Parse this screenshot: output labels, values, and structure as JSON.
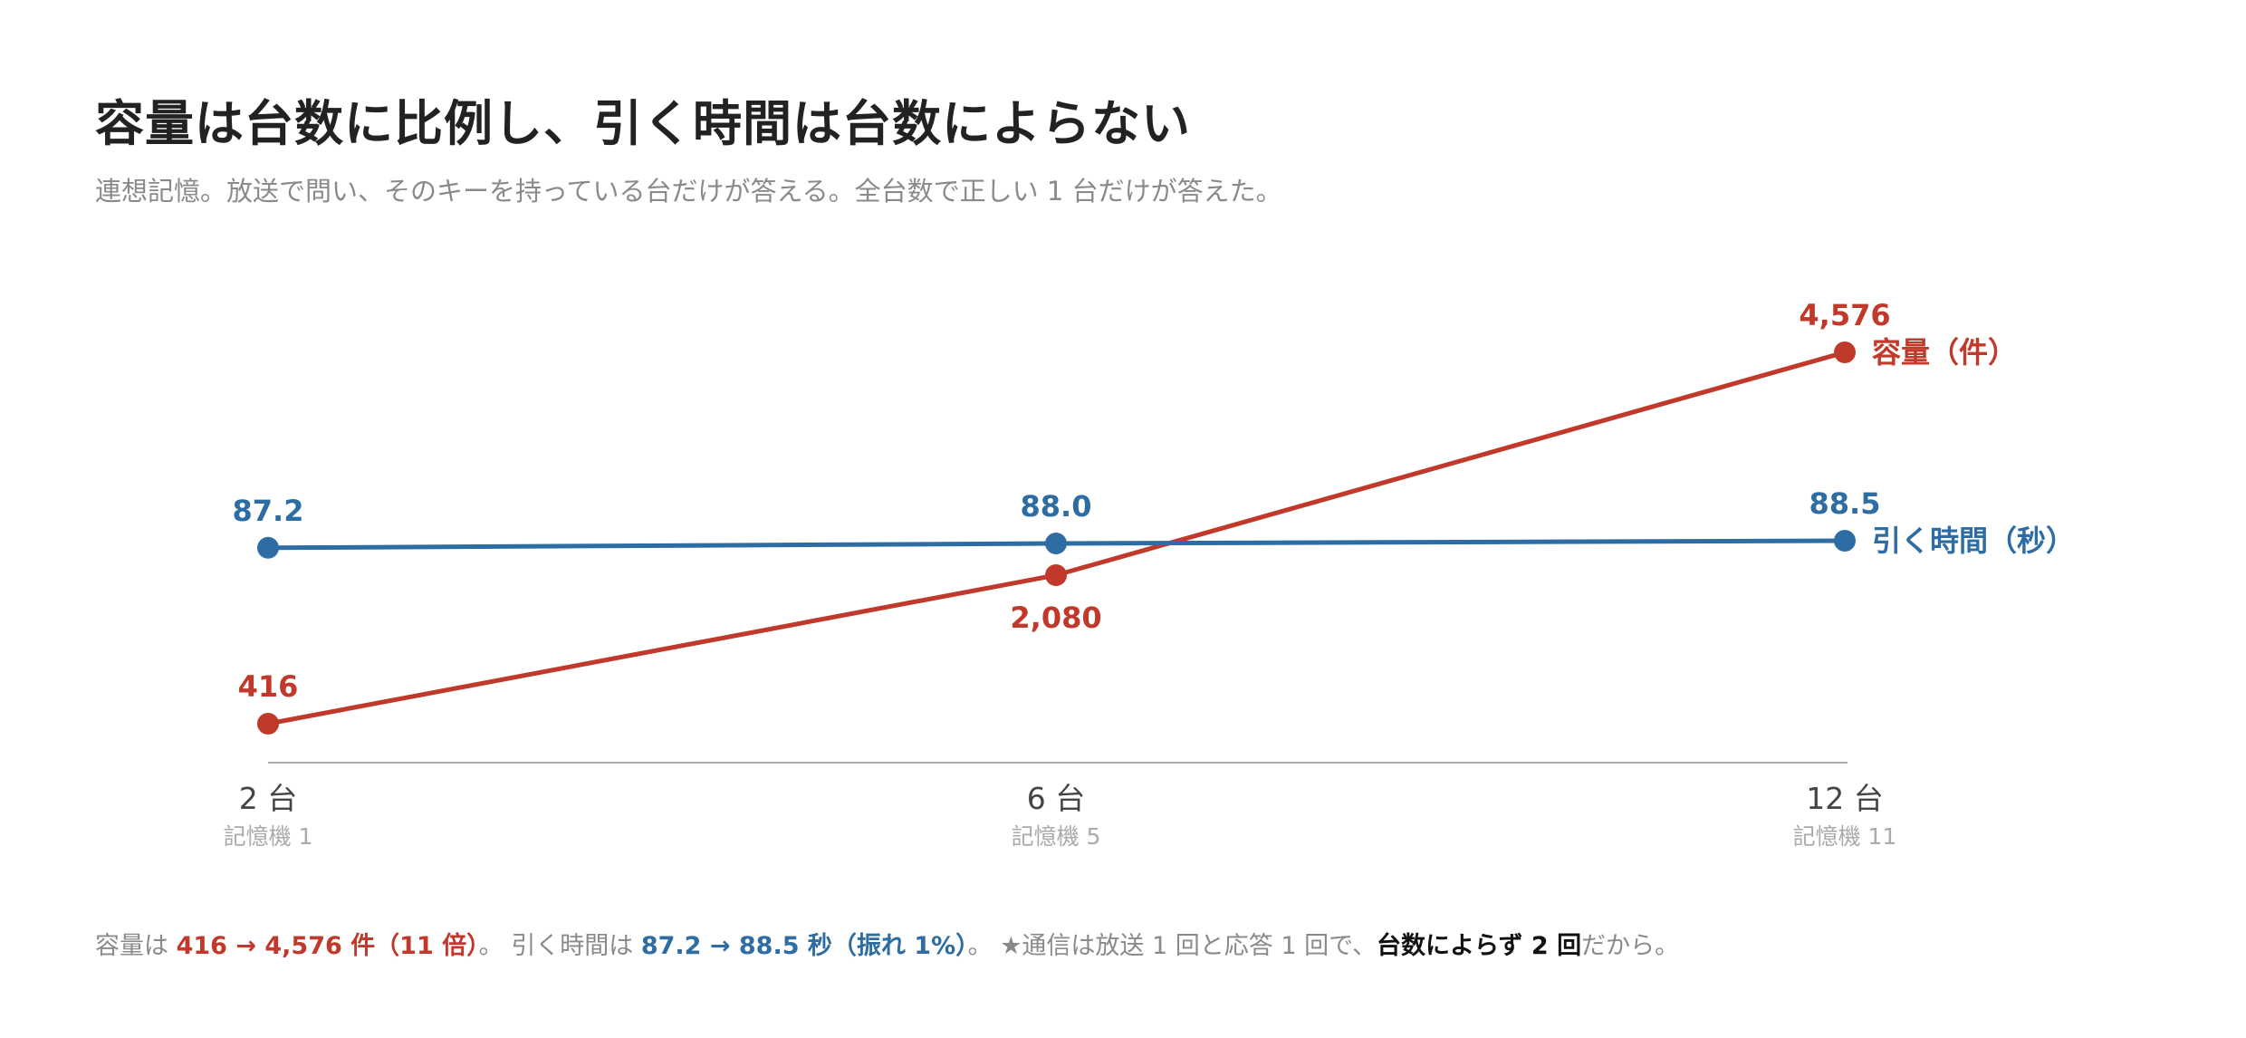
{
  "title": "容量は台数に比例し、引く時間は台数によらない",
  "subtitle": "連想記憶。放送で問い、そのキーを持っている台だけが答える。全台数で正しい 1 台だけが答えた。",
  "colors": {
    "capacity": "#c0392b",
    "time": "#2e6da4",
    "axis": "#aaaaaa",
    "tick_main": "#444444",
    "tick_sub": "#aaaaaa"
  },
  "chart_data": {
    "type": "line",
    "categories": [
      "2 台",
      "6 台",
      "12 台"
    ],
    "category_sublabels": [
      "記憶機 1",
      "記憶機 5",
      "記憶機 11"
    ],
    "series": [
      {
        "name": "容量（件）",
        "values": [
          416,
          2080,
          4576
        ],
        "value_labels": [
          "416",
          "2,080",
          "4,576"
        ],
        "color": "#c0392b"
      },
      {
        "name": "引く時間（秒）",
        "values": [
          87.2,
          88.0,
          88.5
        ],
        "value_labels": [
          "87.2",
          "88.0",
          "88.5"
        ],
        "color": "#2e6da4"
      }
    ],
    "grid": false,
    "legend": "direct labels at line ends (right)"
  },
  "footnote": {
    "cap_prefix": "容量は ",
    "cap_value": "416 → 4,576 件（11 倍）",
    "cap_suffix": "。 引く時間は ",
    "time_value": "87.2 → 88.5 秒（振れ 1%）",
    "time_suffix": "。 ★通信は放送 1 回と応答 1 回で、",
    "emphasis": "台数によらず 2 回",
    "end": "だから。"
  }
}
